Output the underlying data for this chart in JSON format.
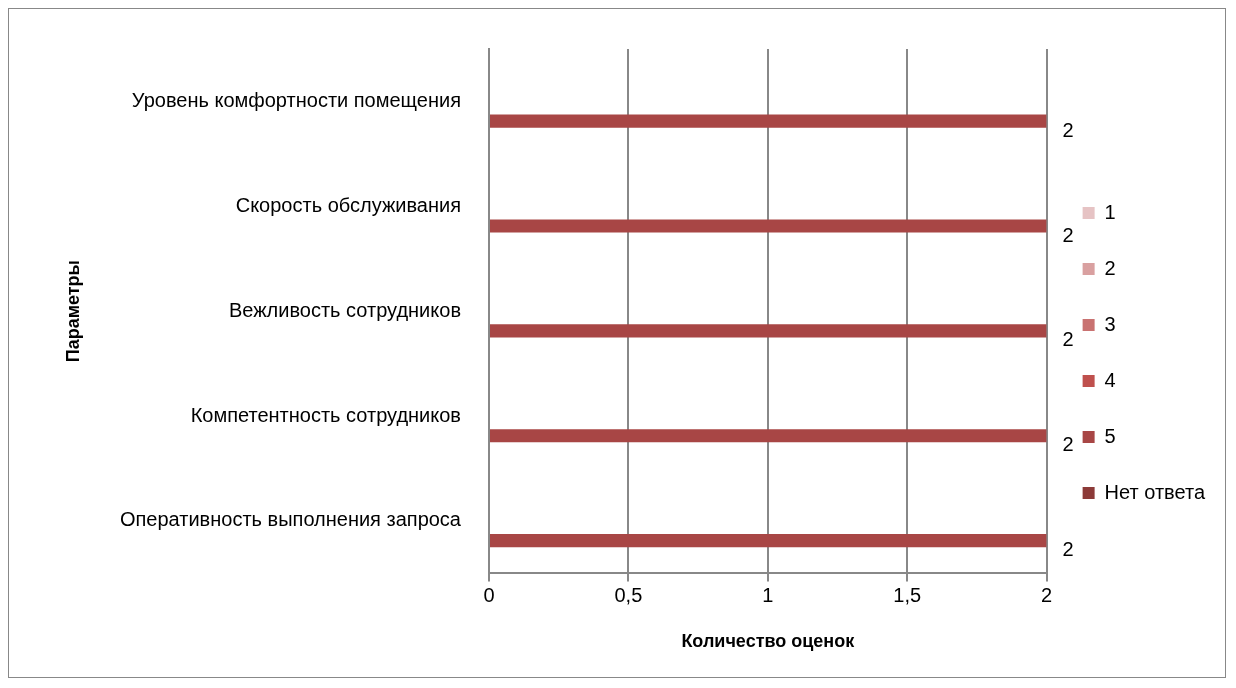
{
  "chart_data": {
    "type": "bar",
    "orientation": "horizontal",
    "xlabel": "Количество оценок",
    "ylabel": "Параметры",
    "categories": [
      "Уровень комфортности помещения",
      "Скорость обслуживания",
      "Вежливость сотрудников",
      "Компетентность сотрудников",
      "Оперативность выполнения запроса"
    ],
    "series": [
      {
        "name": "1",
        "color": "#e6c3c4",
        "values": [
          null,
          null,
          null,
          null,
          null
        ]
      },
      {
        "name": "2",
        "color": "#d9a0a0",
        "values": [
          null,
          null,
          null,
          null,
          null
        ]
      },
      {
        "name": "3",
        "color": "#c97271",
        "values": [
          null,
          null,
          null,
          null,
          null
        ]
      },
      {
        "name": "4",
        "color": "#bf504d",
        "values": [
          null,
          null,
          null,
          null,
          null
        ]
      },
      {
        "name": "5",
        "color": "#a84645",
        "values": [
          2,
          2,
          2,
          2,
          2
        ],
        "value_labels": [
          "2",
          "2",
          "2",
          "2",
          "2"
        ]
      },
      {
        "name": "Нет ответа",
        "color": "#8c3a38",
        "values": [
          null,
          null,
          null,
          null,
          null
        ]
      }
    ],
    "xlim": [
      0,
      2
    ],
    "xticks": [
      0,
      {
        "value": 0.5,
        "label": "0,5"
      },
      1,
      {
        "value": 1.5,
        "label": "1,5"
      },
      2
    ],
    "grid": "x",
    "legend": "right"
  }
}
